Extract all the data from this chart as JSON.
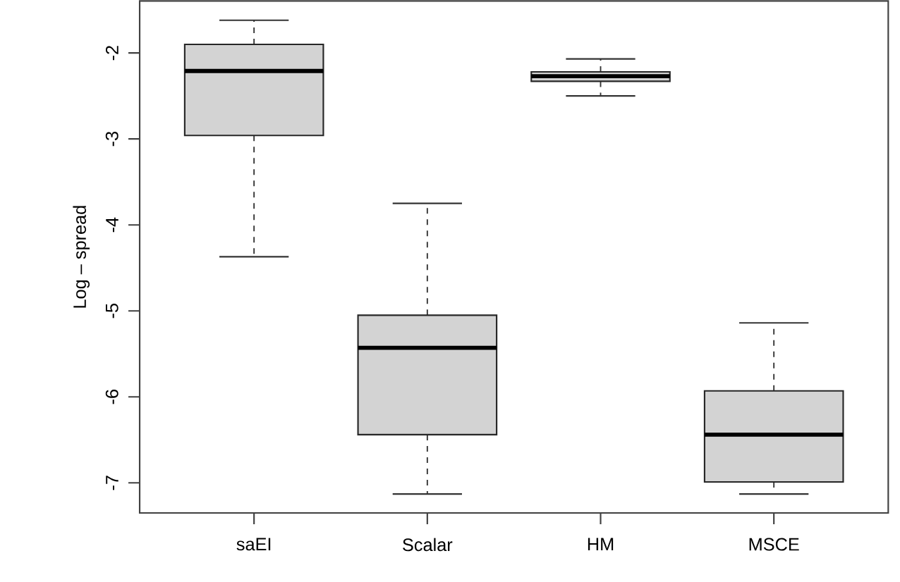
{
  "chart_data": {
    "type": "box",
    "ylabel": "Log – spread",
    "categories": [
      "saEI",
      "Scalar",
      "HM",
      "MSCE"
    ],
    "color": "#d3d3d3",
    "boxes": [
      {
        "low": -4.37,
        "q1": -2.96,
        "median": -2.21,
        "q3": -1.9,
        "high": -1.62
      },
      {
        "low": -7.13,
        "q1": -6.44,
        "median": -5.43,
        "q3": -5.05,
        "high": -3.75
      },
      {
        "low": -2.5,
        "q1": -2.33,
        "median": -2.27,
        "q3": -2.22,
        "high": -2.07
      },
      {
        "low": -7.13,
        "q1": -6.99,
        "median": -6.44,
        "q3": -5.93,
        "high": -5.14
      }
    ],
    "ylim": [
      -7.35,
      -1.395
    ],
    "yticks": [
      -7,
      -6,
      -5,
      -4,
      -3,
      -2
    ],
    "grid": false
  }
}
